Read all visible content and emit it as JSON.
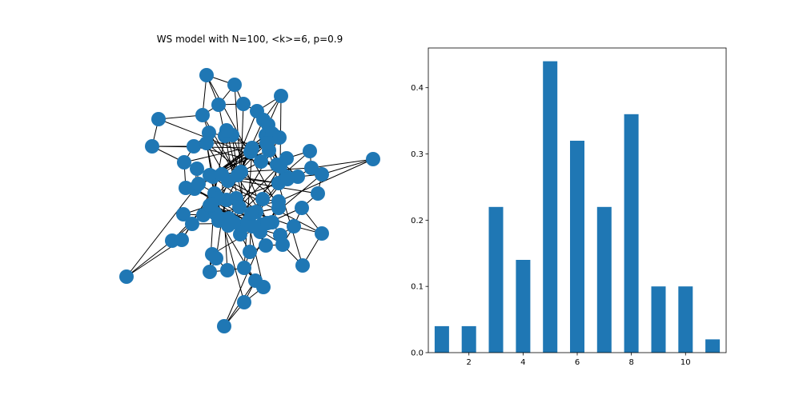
{
  "network": {
    "title": "WS model with N=100, <k>=6, p=0.9",
    "node_color": "#1f77b4",
    "edge_color": "#000000",
    "node_count": 100
  },
  "chart_data": {
    "type": "bar",
    "title": "",
    "xlabel": "",
    "ylabel": "",
    "x": [
      1,
      2,
      3,
      4,
      5,
      6,
      7,
      8,
      9,
      10,
      11
    ],
    "values": [
      0.04,
      0.04,
      0.22,
      0.14,
      0.44,
      0.32,
      0.22,
      0.36,
      0.1,
      0.1,
      0.02
    ],
    "xlim": [
      0.5,
      11.5
    ],
    "ylim": [
      0,
      0.46
    ],
    "xticks": [
      2,
      4,
      6,
      8,
      10
    ],
    "yticks": [
      0.0,
      0.1,
      0.2,
      0.3,
      0.4
    ],
    "ytick_labels": [
      "0.0",
      "0.1",
      "0.2",
      "0.3",
      "0.4"
    ],
    "bar_color": "#1f77b4",
    "grid": false,
    "legend": "none"
  }
}
